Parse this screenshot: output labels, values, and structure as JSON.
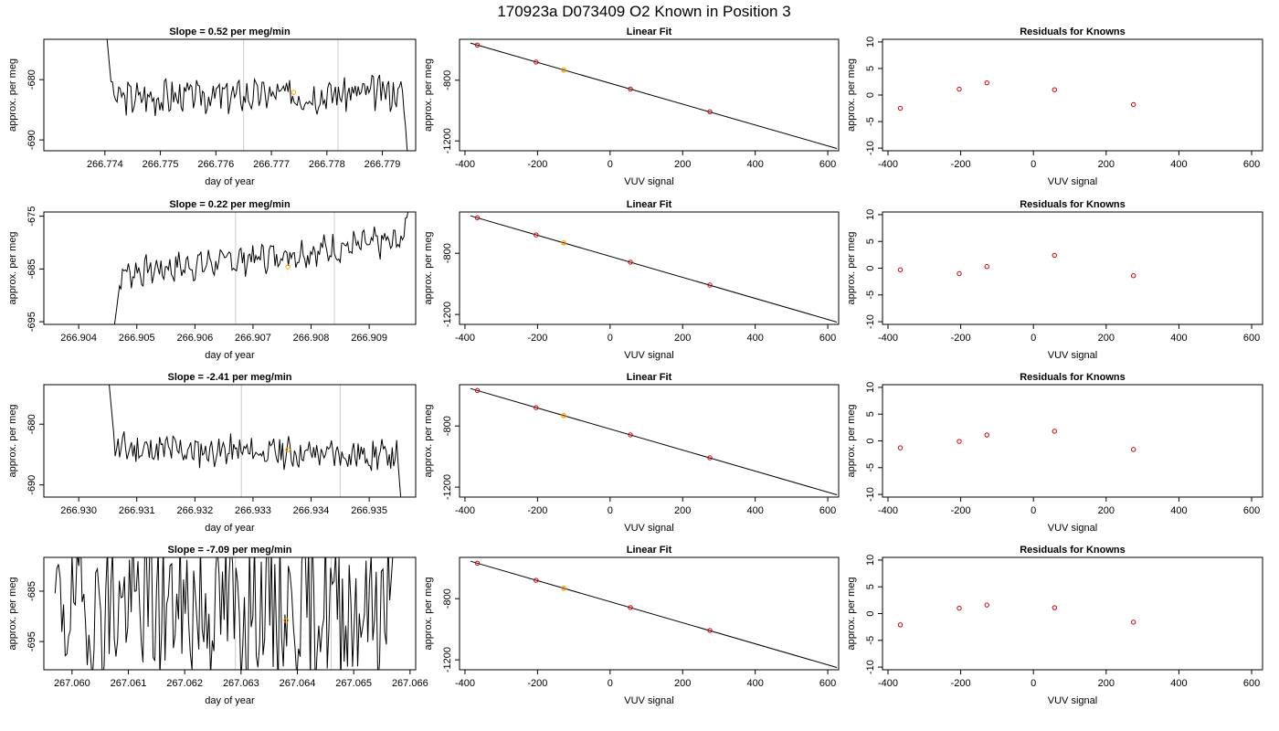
{
  "figure": {
    "title": "170923a      D073409   O2 Known in Position  3"
  },
  "colors": {
    "trace": "#000000",
    "marker_highlight": "#ffa500",
    "known_points": "#cc0000",
    "vertical_lines": "#cccccc",
    "fit_line": "#000000"
  },
  "chart_data": [
    {
      "type": "line",
      "row": 1,
      "panel": "timeseries",
      "title": "Slope =  0.52  per meg/min",
      "xlabel": "day of year",
      "ylabel": "approx. per meg",
      "xlim": [
        266.7729,
        266.7796
      ],
      "ylim": [
        -691.8,
        -673.3
      ],
      "xticks": [
        "266.774",
        "266.775",
        "266.776",
        "266.777",
        "266.778",
        "266.779"
      ],
      "yticks": [
        "-680",
        "-690"
      ],
      "vlines": [
        266.7765,
        266.7782
      ],
      "marker": {
        "x": 266.7774,
        "y": -682.1
      },
      "series": [
        {
          "x0": 266.774,
          "x1": 266.7795,
          "pattern": "spike",
          "start": -669.5,
          "base": -683,
          "amp": 2.6,
          "seed": 3,
          "drift": 0.9,
          "end": -696
        }
      ]
    },
    {
      "type": "line",
      "row": 2,
      "panel": "timeseries",
      "title": "Slope =  0.22  per meg/min",
      "xlabel": "day of year",
      "ylabel": "approx. per meg",
      "xlim": [
        266.9034,
        266.9098
      ],
      "ylim": [
        -695.5,
        -674.2
      ],
      "xticks": [
        "266.904",
        "266.905",
        "266.906",
        "266.907",
        "266.908",
        "266.909"
      ],
      "yticks": [
        "-675",
        "-685",
        "-695"
      ],
      "vlines": [
        266.9067,
        266.9084
      ],
      "marker": {
        "x": 266.9076,
        "y": -684.6
      },
      "series": [
        {
          "x0": 266.9046,
          "x1": 266.9097,
          "pattern": "rise",
          "start": -697,
          "base": -686,
          "amp": 2.2,
          "seed": 7,
          "drift": 6.5,
          "end": -672
        }
      ]
    },
    {
      "type": "line",
      "row": 3,
      "panel": "timeseries",
      "title": "Slope =  -2.41  per meg/min",
      "xlabel": "day of year",
      "ylabel": "approx. per meg",
      "xlim": [
        266.9294,
        266.9358
      ],
      "ylim": [
        -692.0,
        -673.5
      ],
      "xticks": [
        "266.930",
        "266.931",
        "266.932",
        "266.933",
        "266.934",
        "266.935"
      ],
      "yticks": [
        "-680",
        "-690"
      ],
      "vlines": [
        266.9328,
        266.9345
      ],
      "marker": {
        "x": 266.9336,
        "y": -684.2
      },
      "series": [
        {
          "x0": 266.9305,
          "x1": 266.9356,
          "pattern": "spike",
          "start": -671,
          "base": -684,
          "amp": 2.3,
          "seed": 11,
          "drift": -1.2,
          "end": -697
        }
      ]
    },
    {
      "type": "line",
      "row": 4,
      "panel": "timeseries",
      "title": "Slope =  -7.09  per meg/min",
      "xlabel": "day of year",
      "ylabel": "approx. per meg",
      "xlim": [
        267.0595,
        267.0661
      ],
      "ylim": [
        -700.6,
        -678.3
      ],
      "xticks": [
        "267.060",
        "267.061",
        "267.062",
        "267.063",
        "267.064",
        "267.065",
        "267.066"
      ],
      "yticks": [
        "-685",
        "-695"
      ],
      "vlines": [
        267.0629,
        267.0646
      ],
      "marker": {
        "x": 267.0638,
        "y": -690.8
      },
      "series": [
        {
          "x0": 267.0597,
          "x1": 267.0657,
          "pattern": "noisy",
          "start": -688,
          "base": -688,
          "amp": 14,
          "seed": 19,
          "drift": 0,
          "end": -682
        }
      ]
    },
    {
      "type": "scatter",
      "row": 1,
      "panel": "fit",
      "title": "Linear Fit",
      "xlabel": "VUV signal",
      "ylabel": "approx. per meg",
      "xlim": [
        -415,
        630
      ],
      "ylim": [
        -1265,
        -530
      ],
      "xticks": [
        -400,
        -200,
        0,
        200,
        400,
        600
      ],
      "yticks": [
        -800,
        -1200
      ],
      "fit_line": {
        "x": [
          -385,
          625
        ],
        "y": [
          -555,
          -1250
        ]
      },
      "points": [
        {
          "x": -366,
          "y": -568
        },
        {
          "x": -204,
          "y": -680
        },
        {
          "x": -128,
          "y": -732
        },
        {
          "x": 56,
          "y": -858
        },
        {
          "x": 275,
          "y": -1008
        }
      ],
      "highlight": {
        "x": -128,
        "y": -732
      }
    },
    {
      "type": "scatter",
      "row": 2,
      "panel": "fit",
      "title": "Linear Fit",
      "xlabel": "VUV signal",
      "ylabel": "approx. per meg",
      "xlim": [
        -415,
        630
      ],
      "ylim": [
        -1265,
        -530
      ],
      "xticks": [
        -400,
        -200,
        0,
        200,
        400,
        600
      ],
      "yticks": [
        -800,
        -1200
      ],
      "fit_line": {
        "x": [
          -385,
          625
        ],
        "y": [
          -555,
          -1250
        ]
      },
      "points": [
        {
          "x": -366,
          "y": -568
        },
        {
          "x": -204,
          "y": -680
        },
        {
          "x": -128,
          "y": -732
        },
        {
          "x": 56,
          "y": -858
        },
        {
          "x": 275,
          "y": -1008
        }
      ],
      "highlight": {
        "x": -128,
        "y": -732
      }
    },
    {
      "type": "scatter",
      "row": 3,
      "panel": "fit",
      "title": "Linear Fit",
      "xlabel": "VUV signal",
      "ylabel": "approx. per meg",
      "xlim": [
        -415,
        630
      ],
      "ylim": [
        -1265,
        -530
      ],
      "xticks": [
        -400,
        -200,
        0,
        200,
        400,
        600
      ],
      "yticks": [
        -800,
        -1200
      ],
      "fit_line": {
        "x": [
          -385,
          625
        ],
        "y": [
          -555,
          -1250
        ]
      },
      "points": [
        {
          "x": -366,
          "y": -568
        },
        {
          "x": -204,
          "y": -680
        },
        {
          "x": -128,
          "y": -732
        },
        {
          "x": 56,
          "y": -858
        },
        {
          "x": 275,
          "y": -1008
        }
      ],
      "highlight": {
        "x": -128,
        "y": -732
      }
    },
    {
      "type": "scatter",
      "row": 4,
      "panel": "fit",
      "title": "Linear Fit",
      "xlabel": "VUV signal",
      "ylabel": "approx. per meg",
      "xlim": [
        -415,
        630
      ],
      "ylim": [
        -1265,
        -530
      ],
      "xticks": [
        -400,
        -200,
        0,
        200,
        400,
        600
      ],
      "yticks": [
        -800,
        -1200
      ],
      "fit_line": {
        "x": [
          -385,
          625
        ],
        "y": [
          -555,
          -1250
        ]
      },
      "points": [
        {
          "x": -366,
          "y": -568
        },
        {
          "x": -204,
          "y": -680
        },
        {
          "x": -128,
          "y": -732
        },
        {
          "x": 56,
          "y": -858
        },
        {
          "x": 275,
          "y": -1008
        }
      ],
      "highlight": {
        "x": -128,
        "y": -732
      }
    },
    {
      "type": "scatter",
      "row": 1,
      "panel": "residuals",
      "title": "Residuals for Knowns",
      "xlabel": "VUV signal",
      "ylabel": "approx. per meg",
      "xlim": [
        -415,
        630
      ],
      "ylim": [
        -10.5,
        10.5
      ],
      "xticks": [
        -400,
        -200,
        0,
        200,
        400,
        600
      ],
      "yticks": [
        10,
        5,
        0,
        -5,
        -10
      ],
      "points": [
        {
          "x": -366,
          "y": -2.5
        },
        {
          "x": -204,
          "y": 1.1
        },
        {
          "x": -128,
          "y": 2.3
        },
        {
          "x": 58,
          "y": 1.0
        },
        {
          "x": 275,
          "y": -1.8
        }
      ]
    },
    {
      "type": "scatter",
      "row": 2,
      "panel": "residuals",
      "title": "Residuals for Knowns",
      "xlabel": "VUV signal",
      "ylabel": "approx. per meg",
      "xlim": [
        -415,
        630
      ],
      "ylim": [
        -10.5,
        10.5
      ],
      "xticks": [
        -400,
        -200,
        0,
        200,
        400,
        600
      ],
      "yticks": [
        10,
        5,
        0,
        -5,
        -10
      ],
      "points": [
        {
          "x": -366,
          "y": -0.3
        },
        {
          "x": -204,
          "y": -1.0
        },
        {
          "x": -128,
          "y": 0.3
        },
        {
          "x": 58,
          "y": 2.4
        },
        {
          "x": 275,
          "y": -1.4
        }
      ]
    },
    {
      "type": "scatter",
      "row": 3,
      "panel": "residuals",
      "title": "Residuals for Knowns",
      "xlabel": "VUV signal",
      "ylabel": "approx. per meg",
      "xlim": [
        -415,
        630
      ],
      "ylim": [
        -10.5,
        10.5
      ],
      "xticks": [
        -400,
        -200,
        0,
        200,
        400,
        600
      ],
      "yticks": [
        10,
        5,
        0,
        -5,
        -10
      ],
      "points": [
        {
          "x": -366,
          "y": -1.3
        },
        {
          "x": -204,
          "y": -0.1
        },
        {
          "x": -128,
          "y": 1.1
        },
        {
          "x": 58,
          "y": 1.8
        },
        {
          "x": 275,
          "y": -1.6
        }
      ]
    },
    {
      "type": "scatter",
      "row": 4,
      "panel": "residuals",
      "title": "Residuals for Knowns",
      "xlabel": "VUV signal",
      "ylabel": "approx. per meg",
      "xlim": [
        -415,
        630
      ],
      "ylim": [
        -10.5,
        10.5
      ],
      "xticks": [
        -400,
        -200,
        0,
        200,
        400,
        600
      ],
      "yticks": [
        10,
        5,
        0,
        -5,
        -10
      ],
      "points": [
        {
          "x": -366,
          "y": -2.1
        },
        {
          "x": -204,
          "y": 1.0
        },
        {
          "x": -128,
          "y": 1.6
        },
        {
          "x": 58,
          "y": 1.1
        },
        {
          "x": 275,
          "y": -1.6
        }
      ]
    }
  ]
}
